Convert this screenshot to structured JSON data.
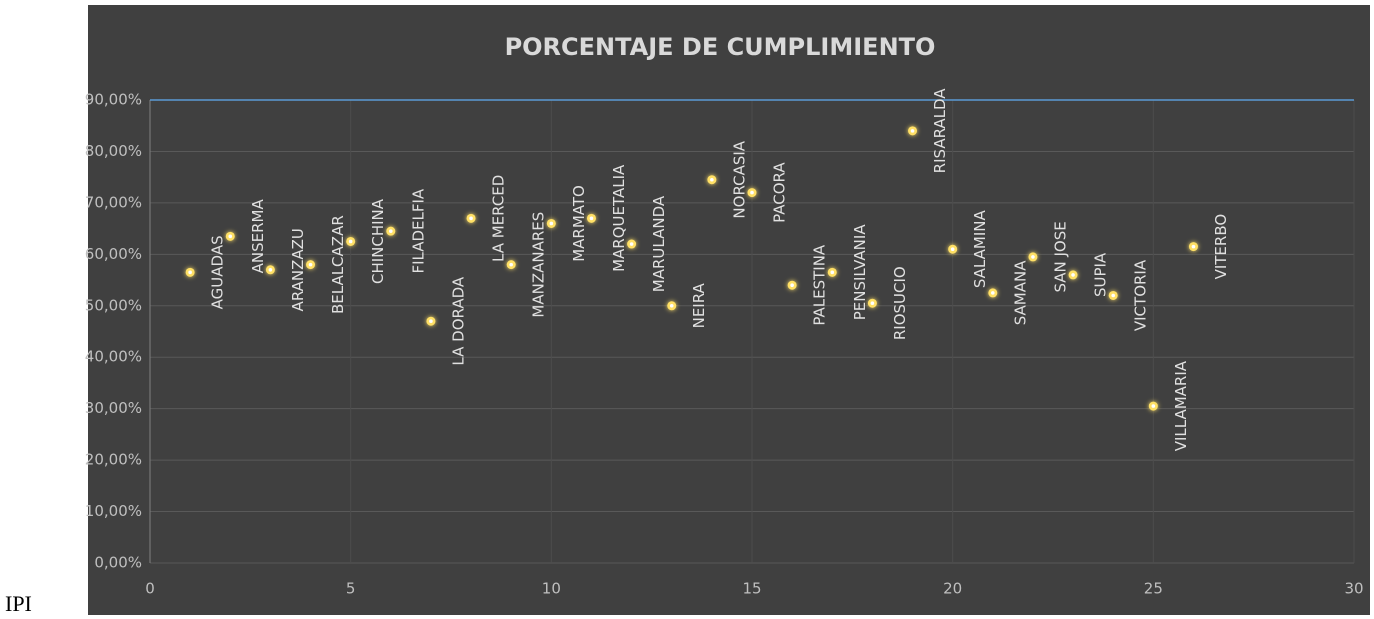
{
  "caption": "IPI",
  "chart_data": {
    "type": "scatter",
    "title": "PORCENTAJE DE CUMPLIMIENTO",
    "x": [
      1,
      2,
      3,
      4,
      5,
      6,
      7,
      8,
      9,
      10,
      11,
      12,
      13,
      14,
      15,
      16,
      17,
      18,
      19,
      20,
      21,
      22,
      23,
      24,
      25,
      26
    ],
    "values": [
      56.5,
      63.5,
      57,
      58,
      62.5,
      64.5,
      47,
      67,
      58,
      66,
      67,
      62,
      50,
      74.5,
      72,
      54,
      56.5,
      50.5,
      84,
      61,
      52.5,
      59.5,
      56,
      52,
      30.5,
      61.5
    ],
    "point_labels": [
      "AGUADAS",
      "ANSERMA",
      "ARANZAZU",
      "BELALCAZAR",
      "CHINCHINA",
      "FILADELFIA",
      "LA DORADA",
      "LA MERCED",
      "MANZANARES",
      "MARMATO",
      "MARQUETALIA",
      "MARULANDA",
      "NEIRA",
      "NORCASIA",
      "PACORA",
      "PALESTINA",
      "PENSILVANIA",
      "RIOSUCIO",
      "RISARALDA",
      "SALAMINA",
      "SAMANA",
      "SAN JOSE",
      "SUPIA",
      "VICTORIA",
      "VILLAMARIA",
      "VITERBO"
    ],
    "color": "#ffe066",
    "xlim": [
      0,
      30
    ],
    "xticks": [
      0,
      5,
      10,
      15,
      20,
      25,
      30
    ],
    "ylim": [
      0,
      90
    ],
    "yticks": [
      {
        "value": 0,
        "label": "0,00%"
      },
      {
        "value": 10,
        "label": "10,00%"
      },
      {
        "value": 20,
        "label": "20,00%"
      },
      {
        "value": 30,
        "label": "30,00%"
      },
      {
        "value": 40,
        "label": "40,00%"
      },
      {
        "value": 50,
        "label": "50,00%"
      },
      {
        "value": 60,
        "label": "60,00%"
      },
      {
        "value": 70,
        "label": "70,00%"
      },
      {
        "value": 80,
        "label": "80,00%"
      },
      {
        "value": 90,
        "label": "90,00%"
      }
    ],
    "grid": true,
    "reference_line": {
      "value": 90,
      "color": "#5b9bd5"
    }
  }
}
